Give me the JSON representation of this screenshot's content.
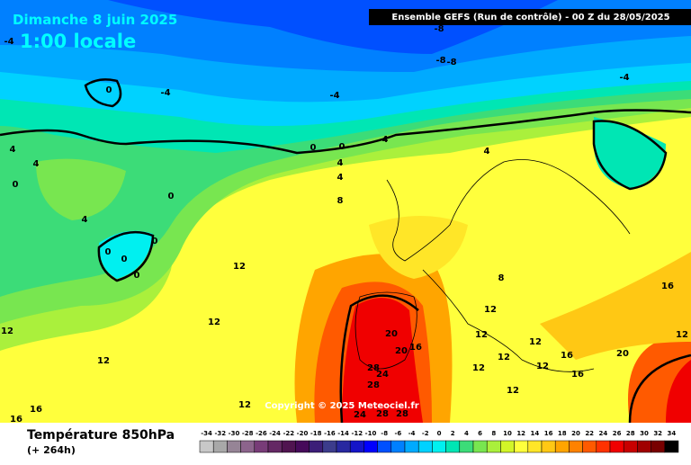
{
  "header": {
    "date": "Dimanche 8 juin 2025",
    "time": "1:00 locale",
    "run": "Ensemble GEFS  (Run de contrôle)  -  00 Z du 28/05/2025"
  },
  "copyright": "Copyright © 2025 Meteociel.fr",
  "footer": {
    "title": "Température 850hPa",
    "lead": "(+ 264h)"
  },
  "scale": {
    "values": [
      -34,
      -32,
      -30,
      -28,
      -26,
      -24,
      -22,
      -20,
      -18,
      -16,
      -14,
      -12,
      -10,
      -8,
      -6,
      -4,
      -2,
      0,
      2,
      4,
      6,
      8,
      10,
      12,
      14,
      16,
      18,
      20,
      22,
      24,
      26,
      28,
      30,
      32,
      34
    ],
    "colors": [
      "#c8c8c8",
      "#a8a8a8",
      "#968496",
      "#8c648c",
      "#783c78",
      "#642864",
      "#501450",
      "#460a5a",
      "#3c1e78",
      "#3c3c8c",
      "#2828a0",
      "#1414c8",
      "#0000ff",
      "#0050ff",
      "#0080ff",
      "#00aaff",
      "#00d2ff",
      "#00f0f0",
      "#00e6b4",
      "#3cdc78",
      "#78e650",
      "#aaf03c",
      "#d2f528",
      "#ffff3c",
      "#ffe628",
      "#ffc814",
      "#ffa500",
      "#ff8200",
      "#ff5a00",
      "#ff3200",
      "#f00000",
      "#c80000",
      "#a00000",
      "#780000",
      "#000000"
    ]
  },
  "contour_labels": [
    -8,
    -8,
    -8,
    -4,
    -4,
    -4,
    0,
    0,
    0,
    4,
    4,
    4,
    0,
    0,
    4,
    4,
    4,
    8,
    0,
    0,
    0,
    0,
    12,
    12,
    12,
    12,
    12,
    16,
    16,
    20,
    16,
    20,
    28,
    24,
    28,
    24,
    28,
    28,
    12,
    12,
    12,
    12,
    12,
    12,
    12,
    16,
    16,
    20,
    16,
    12,
    -4,
    4,
    8
  ]
}
